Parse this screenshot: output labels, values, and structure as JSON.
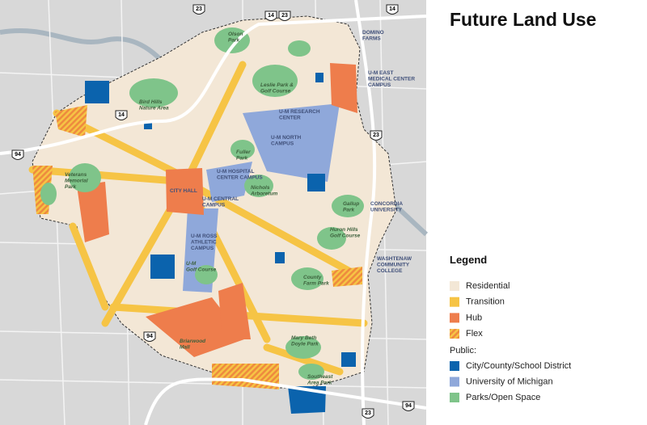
{
  "title": "Future Land Use",
  "legend": {
    "title": "Legend",
    "items": [
      {
        "label": "Residential",
        "color": "#f3e7d6"
      },
      {
        "label": "Transition",
        "color": "#f6c445"
      },
      {
        "label": "Hub",
        "color": "#ee7d4c"
      },
      {
        "label": "Flex",
        "color": "#f2a23a",
        "pattern": "hatch"
      }
    ],
    "public_label": "Public:",
    "public_items": [
      {
        "label": "City/County/School District",
        "color": "#0b63ad"
      },
      {
        "label": "University of Michigan",
        "color": "#8fa8da"
      },
      {
        "label": "Parks/Open Space",
        "color": "#7fc48a"
      }
    ]
  },
  "map": {
    "labels": [
      {
        "lines": [
          "Olson",
          "Park"
        ]
      },
      {
        "lines": [
          "DOMINO",
          "FARMS"
        ]
      },
      {
        "lines": [
          "U-M EAST",
          "MEDICAL CENTER",
          "CAMPUS"
        ]
      },
      {
        "lines": [
          "Leslie Park &",
          "Golf Course"
        ]
      },
      {
        "lines": [
          "U-M RESEARCH",
          "CENTER"
        ]
      },
      {
        "lines": [
          "Bird Hills",
          "Nature Area"
        ]
      },
      {
        "lines": [
          "U-M NORTH",
          "CAMPUS"
        ]
      },
      {
        "lines": [
          "Fuller",
          "Park"
        ]
      },
      {
        "lines": [
          "U-M HOSPITAL",
          "CENTER CAMPUS"
        ]
      },
      {
        "lines": [
          "Veterans",
          "Memorial",
          "Park"
        ]
      },
      {
        "lines": [
          "CITY HALL"
        ]
      },
      {
        "lines": [
          "Nichols",
          "Arboretum"
        ]
      },
      {
        "lines": [
          "U-M CENTRAL",
          "CAMPUS"
        ]
      },
      {
        "lines": [
          "Gallup",
          "Park"
        ]
      },
      {
        "lines": [
          "CONCORDIA",
          "UNIVERSITY"
        ]
      },
      {
        "lines": [
          "Huron Hills",
          "Golf Course"
        ]
      },
      {
        "lines": [
          "U-M ROSS",
          "ATHLETIC",
          "CAMPUS"
        ]
      },
      {
        "lines": [
          "U-M",
          "Golf Course"
        ]
      },
      {
        "lines": [
          "WASHTENAW",
          "COMMUNITY",
          "COLLEGE"
        ]
      },
      {
        "lines": [
          "County",
          "Farm Park"
        ]
      },
      {
        "lines": [
          "Briarwood",
          "Mall"
        ]
      },
      {
        "lines": [
          "Mary Beth",
          "Doyle Park"
        ]
      },
      {
        "lines": [
          "Southeast",
          "Area Park"
        ]
      }
    ],
    "shields": [
      "23",
      "14",
      "23",
      "14",
      "14",
      "23",
      "94",
      "94",
      "23",
      "94"
    ]
  }
}
